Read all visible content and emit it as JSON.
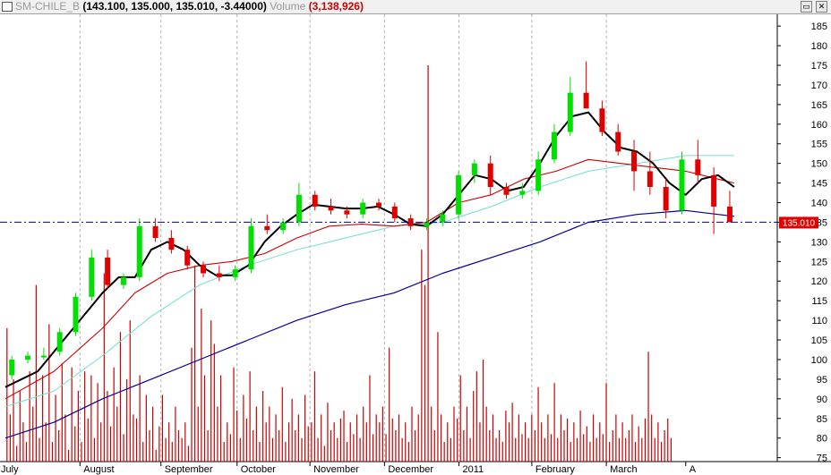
{
  "window": {
    "symbol": "SM-CHILE_B",
    "quote": "(143.100, 135.000, 135.010, -3.44000)",
    "volume_label": "Volume",
    "volume_value": "(3,138,926)",
    "restore_icon": "restore-icon",
    "close_icon": "close-icon"
  },
  "colors": {
    "up_candle": "#00e000",
    "down_candle": "#e00000",
    "ma_short": "#000000",
    "ma_mid": "#cc0000",
    "ma_cyan": "#70e0d0",
    "ma_long": "#000099",
    "volume": "#cc0000",
    "last_price_box": "#e00000",
    "grid": "#b0b0b0"
  },
  "chart_data": {
    "type": "candlestick",
    "ylim": [
      74,
      188
    ],
    "y_ticks": [
      75,
      80,
      85,
      90,
      95,
      100,
      105,
      110,
      115,
      120,
      125,
      130,
      135,
      140,
      145,
      150,
      155,
      160,
      165,
      170,
      175,
      180,
      185
    ],
    "last_price": "135.010",
    "last_price_value": 135.01,
    "months": [
      "July",
      "August",
      "September",
      "October",
      "November",
      "December",
      "2011",
      "February",
      "March",
      "A"
    ],
    "x_range": [
      0,
      46
    ],
    "month_positions": [
      0.5,
      5.6,
      10.6,
      15.3,
      19.8,
      24.4,
      29.0,
      33.5,
      38.1,
      43.0
    ],
    "candles": [
      [
        0,
        96,
        101,
        95,
        100
      ],
      [
        1,
        100,
        102,
        99,
        101
      ],
      [
        2,
        101,
        103,
        100,
        101
      ],
      [
        3,
        102,
        108,
        101,
        107
      ],
      [
        4,
        107,
        117,
        106,
        116
      ],
      [
        5,
        116,
        128,
        115,
        126
      ],
      [
        6,
        126,
        128,
        118,
        119
      ],
      [
        7,
        119,
        122,
        118,
        121
      ],
      [
        8,
        121,
        136,
        120,
        134
      ],
      [
        9,
        134,
        136,
        130,
        131
      ],
      [
        10,
        131,
        133,
        127,
        128
      ],
      [
        11,
        128,
        129,
        123,
        124
      ],
      [
        12,
        124,
        125,
        121,
        122
      ],
      [
        13,
        122,
        124,
        120,
        121
      ],
      [
        14,
        121,
        124,
        120,
        123
      ],
      [
        15,
        123,
        136,
        122,
        134
      ],
      [
        16,
        134,
        137,
        132,
        133
      ],
      [
        17,
        133,
        136,
        132,
        135
      ],
      [
        18,
        135,
        145,
        134,
        142
      ],
      [
        19,
        142,
        143,
        138,
        139
      ],
      [
        20,
        139,
        141,
        137,
        138
      ],
      [
        21,
        138,
        139,
        136,
        137
      ],
      [
        22,
        137,
        141,
        136,
        140
      ],
      [
        23,
        140,
        141,
        138,
        139
      ],
      [
        24,
        139,
        140,
        135,
        136
      ],
      [
        25,
        136,
        137,
        133,
        134
      ],
      [
        26,
        134,
        136,
        133,
        135
      ],
      [
        27,
        135,
        138,
        134,
        137
      ],
      [
        28,
        137,
        148,
        136,
        147
      ],
      [
        29,
        147,
        151,
        145,
        150
      ],
      [
        30,
        150,
        152,
        142,
        144
      ],
      [
        31,
        144,
        145,
        141,
        142
      ],
      [
        32,
        142,
        145,
        141,
        143
      ],
      [
        33,
        143,
        153,
        142,
        151
      ],
      [
        34,
        151,
        160,
        150,
        158
      ],
      [
        35,
        158,
        172,
        157,
        168
      ],
      [
        36,
        168,
        176,
        165,
        164
      ],
      [
        37,
        164,
        166,
        157,
        158
      ],
      [
        38,
        158,
        160,
        152,
        153
      ],
      [
        39,
        153,
        156,
        143,
        148
      ],
      [
        40,
        148,
        153,
        142,
        144
      ],
      [
        41,
        144,
        146,
        136,
        138
      ],
      [
        42,
        138,
        153,
        137,
        151
      ],
      [
        43,
        151,
        156,
        145,
        147
      ],
      [
        44,
        147,
        149,
        132,
        139
      ],
      [
        45,
        139,
        143,
        135,
        135
      ]
    ],
    "ma_short": [
      [
        0,
        93
      ],
      [
        2,
        97
      ],
      [
        4,
        107
      ],
      [
        6,
        117
      ],
      [
        7,
        121
      ],
      [
        8,
        121
      ],
      [
        9,
        128
      ],
      [
        10,
        130
      ],
      [
        11,
        128
      ],
      [
        12,
        124
      ],
      [
        13,
        121.5
      ],
      [
        14,
        121.5
      ],
      [
        15,
        124
      ],
      [
        16,
        130
      ],
      [
        17,
        134
      ],
      [
        18,
        137
      ],
      [
        19,
        139.5
      ],
      [
        20,
        139
      ],
      [
        21,
        138.5
      ],
      [
        22,
        138.5
      ],
      [
        23,
        139
      ],
      [
        24,
        137
      ],
      [
        25,
        134.5
      ],
      [
        26,
        134
      ],
      [
        27,
        137
      ],
      [
        28,
        142
      ],
      [
        29,
        147
      ],
      [
        30,
        146
      ],
      [
        31,
        143
      ],
      [
        32,
        144
      ],
      [
        33,
        150
      ],
      [
        34,
        157
      ],
      [
        35,
        162
      ],
      [
        36,
        163
      ],
      [
        37,
        158
      ],
      [
        38,
        154
      ],
      [
        39,
        153
      ],
      [
        40,
        150
      ],
      [
        41,
        145
      ],
      [
        42,
        142
      ],
      [
        43,
        146
      ],
      [
        44,
        147
      ],
      [
        45,
        144
      ]
    ],
    "ma_mid": [
      [
        0,
        90
      ],
      [
        3,
        97
      ],
      [
        6,
        108
      ],
      [
        8,
        117
      ],
      [
        10,
        122
      ],
      [
        12,
        124
      ],
      [
        14,
        125
      ],
      [
        16,
        127
      ],
      [
        18,
        131
      ],
      [
        20,
        134
      ],
      [
        22,
        134.5
      ],
      [
        24,
        134
      ],
      [
        26,
        135
      ],
      [
        28,
        140
      ],
      [
        30,
        142
      ],
      [
        32,
        146
      ],
      [
        34,
        148
      ],
      [
        36,
        151
      ],
      [
        38,
        150
      ],
      [
        40,
        149
      ],
      [
        42,
        148
      ],
      [
        44,
        146
      ],
      [
        45,
        145
      ]
    ],
    "ma_cyan": [
      [
        0,
        88
      ],
      [
        3,
        92
      ],
      [
        6,
        101
      ],
      [
        9,
        111
      ],
      [
        12,
        119
      ],
      [
        15,
        124
      ],
      [
        18,
        128
      ],
      [
        21,
        131
      ],
      [
        24,
        134
      ],
      [
        27,
        135
      ],
      [
        30,
        139
      ],
      [
        33,
        144
      ],
      [
        36,
        148
      ],
      [
        39,
        150
      ],
      [
        42,
        152
      ],
      [
        45,
        152
      ]
    ],
    "ma_long": [
      [
        0,
        80
      ],
      [
        3,
        84
      ],
      [
        6,
        90
      ],
      [
        9,
        95
      ],
      [
        12,
        100
      ],
      [
        15,
        105
      ],
      [
        18,
        110
      ],
      [
        21,
        114
      ],
      [
        24,
        117
      ],
      [
        27,
        122
      ],
      [
        30,
        126
      ],
      [
        33,
        130
      ],
      [
        36,
        135
      ],
      [
        39,
        137
      ],
      [
        42,
        138
      ],
      [
        44,
        137
      ],
      [
        45,
        136.5
      ]
    ],
    "volume_bars": [
      [
        0.1,
        108
      ],
      [
        0.3,
        86
      ],
      [
        0.5,
        95
      ],
      [
        0.7,
        78
      ],
      [
        0.9,
        92
      ],
      [
        1.1,
        84
      ],
      [
        1.3,
        79
      ],
      [
        1.5,
        97
      ],
      [
        1.7,
        88
      ],
      [
        1.9,
        119
      ],
      [
        2.1,
        80
      ],
      [
        2.3,
        96
      ],
      [
        2.5,
        84
      ],
      [
        2.7,
        109
      ],
      [
        2.9,
        79
      ],
      [
        3.1,
        91
      ],
      [
        3.3,
        82
      ],
      [
        3.5,
        99
      ],
      [
        3.7,
        86
      ],
      [
        3.9,
        77
      ],
      [
        4.1,
        98
      ],
      [
        4.3,
        83
      ],
      [
        4.5,
        92
      ],
      [
        4.7,
        79
      ],
      [
        4.9,
        97
      ],
      [
        5.1,
        85
      ],
      [
        5.3,
        96
      ],
      [
        5.5,
        80
      ],
      [
        5.7,
        94
      ],
      [
        5.9,
        84
      ],
      [
        6.1,
        122
      ],
      [
        6.3,
        92
      ],
      [
        6.5,
        83
      ],
      [
        6.7,
        98
      ],
      [
        6.9,
        88
      ],
      [
        7.1,
        107
      ],
      [
        7.3,
        81
      ],
      [
        7.5,
        95
      ],
      [
        7.7,
        110
      ],
      [
        7.9,
        86
      ],
      [
        8.1,
        85
      ],
      [
        8.3,
        96
      ],
      [
        8.5,
        79
      ],
      [
        8.7,
        91
      ],
      [
        8.9,
        82
      ],
      [
        9.1,
        88
      ],
      [
        9.3,
        77
      ],
      [
        9.5,
        83
      ],
      [
        9.7,
        91
      ],
      [
        9.9,
        80
      ],
      [
        10.1,
        84
      ],
      [
        10.3,
        79
      ],
      [
        10.5,
        88
      ],
      [
        10.7,
        82
      ],
      [
        10.9,
        80
      ],
      [
        11.1,
        84
      ],
      [
        11.3,
        78
      ],
      [
        11.5,
        103
      ],
      [
        11.7,
        124
      ],
      [
        11.9,
        88
      ],
      [
        12.1,
        113
      ],
      [
        12.3,
        96
      ],
      [
        12.5,
        82
      ],
      [
        12.7,
        110
      ],
      [
        12.9,
        104
      ],
      [
        13.1,
        88
      ],
      [
        13.3,
        96
      ],
      [
        13.5,
        79
      ],
      [
        13.7,
        84
      ],
      [
        13.9,
        81
      ],
      [
        14.1,
        98
      ],
      [
        14.3,
        87
      ],
      [
        14.5,
        80
      ],
      [
        14.7,
        91
      ],
      [
        14.9,
        85
      ],
      [
        15.1,
        97
      ],
      [
        15.3,
        82
      ],
      [
        15.5,
        88
      ],
      [
        15.7,
        79
      ],
      [
        15.9,
        92
      ],
      [
        16.1,
        84
      ],
      [
        16.3,
        88
      ],
      [
        16.5,
        80
      ],
      [
        16.7,
        86
      ],
      [
        16.9,
        82
      ],
      [
        17.1,
        93
      ],
      [
        17.3,
        79
      ],
      [
        17.5,
        84
      ],
      [
        17.7,
        90
      ],
      [
        17.9,
        82
      ],
      [
        18.1,
        86
      ],
      [
        18.3,
        80
      ],
      [
        18.5,
        91
      ],
      [
        18.7,
        83
      ],
      [
        18.9,
        84
      ],
      [
        19.1,
        97
      ],
      [
        19.3,
        80
      ],
      [
        19.5,
        86
      ],
      [
        19.7,
        78
      ],
      [
        19.9,
        89
      ],
      [
        20.1,
        82
      ],
      [
        20.3,
        84
      ],
      [
        20.5,
        80
      ],
      [
        20.7,
        85
      ],
      [
        20.9,
        87
      ],
      [
        21.1,
        79
      ],
      [
        21.3,
        84
      ],
      [
        21.5,
        81
      ],
      [
        21.7,
        86
      ],
      [
        21.9,
        80
      ],
      [
        22.1,
        88
      ],
      [
        22.3,
        84
      ],
      [
        22.5,
        96
      ],
      [
        22.7,
        81
      ],
      [
        22.9,
        86
      ],
      [
        23.1,
        84
      ],
      [
        23.3,
        88
      ],
      [
        23.5,
        81
      ],
      [
        23.7,
        103
      ],
      [
        23.9,
        85
      ],
      [
        24.1,
        82
      ],
      [
        24.3,
        86
      ],
      [
        24.5,
        80
      ],
      [
        24.7,
        84
      ],
      [
        24.9,
        79
      ],
      [
        25.1,
        88
      ],
      [
        25.3,
        82
      ],
      [
        25.5,
        86
      ],
      [
        25.7,
        128
      ],
      [
        25.9,
        119
      ],
      [
        26.1,
        175
      ],
      [
        26.3,
        88
      ],
      [
        26.5,
        82
      ],
      [
        26.7,
        107
      ],
      [
        26.9,
        86
      ],
      [
        27.1,
        79
      ],
      [
        27.3,
        84
      ],
      [
        27.5,
        80
      ],
      [
        27.7,
        88
      ],
      [
        27.9,
        85
      ],
      [
        28.1,
        96
      ],
      [
        28.3,
        82
      ],
      [
        28.5,
        88
      ],
      [
        28.7,
        80
      ],
      [
        28.9,
        92
      ],
      [
        29.1,
        97
      ],
      [
        29.3,
        84
      ],
      [
        29.5,
        100
      ],
      [
        29.7,
        88
      ],
      [
        29.9,
        82
      ],
      [
        30.1,
        86
      ],
      [
        30.3,
        80
      ],
      [
        30.5,
        82
      ],
      [
        30.7,
        79
      ],
      [
        30.9,
        87
      ],
      [
        31.1,
        84
      ],
      [
        31.3,
        89
      ],
      [
        31.5,
        80
      ],
      [
        31.7,
        86
      ],
      [
        31.9,
        81
      ],
      [
        32.1,
        84
      ],
      [
        32.3,
        80
      ],
      [
        32.5,
        86
      ],
      [
        32.7,
        82
      ],
      [
        32.9,
        93
      ],
      [
        33.1,
        84
      ],
      [
        33.3,
        80
      ],
      [
        33.5,
        86
      ],
      [
        33.7,
        81
      ],
      [
        33.9,
        94
      ],
      [
        34.1,
        80
      ],
      [
        34.3,
        86
      ],
      [
        34.5,
        82
      ],
      [
        34.7,
        85
      ],
      [
        34.9,
        79
      ],
      [
        35.1,
        84
      ],
      [
        35.3,
        80
      ],
      [
        35.5,
        87
      ],
      [
        35.7,
        81
      ],
      [
        35.9,
        83
      ],
      [
        36.1,
        79
      ],
      [
        36.3,
        86
      ],
      [
        36.5,
        80
      ],
      [
        36.7,
        84
      ],
      [
        36.9,
        81
      ],
      [
        37.1,
        94
      ],
      [
        37.3,
        79
      ],
      [
        37.5,
        82
      ],
      [
        37.7,
        86
      ],
      [
        37.9,
        80
      ],
      [
        38.1,
        84
      ],
      [
        38.3,
        80
      ],
      [
        38.5,
        82
      ],
      [
        38.7,
        86
      ],
      [
        38.9,
        79
      ],
      [
        39.1,
        83
      ],
      [
        39.3,
        80
      ],
      [
        39.5,
        85
      ],
      [
        39.7,
        102
      ],
      [
        39.9,
        86
      ],
      [
        40.1,
        80
      ],
      [
        40.3,
        84
      ],
      [
        40.5,
        79
      ],
      [
        40.7,
        82
      ],
      [
        40.9,
        85
      ],
      [
        41.1,
        80
      ]
    ]
  }
}
